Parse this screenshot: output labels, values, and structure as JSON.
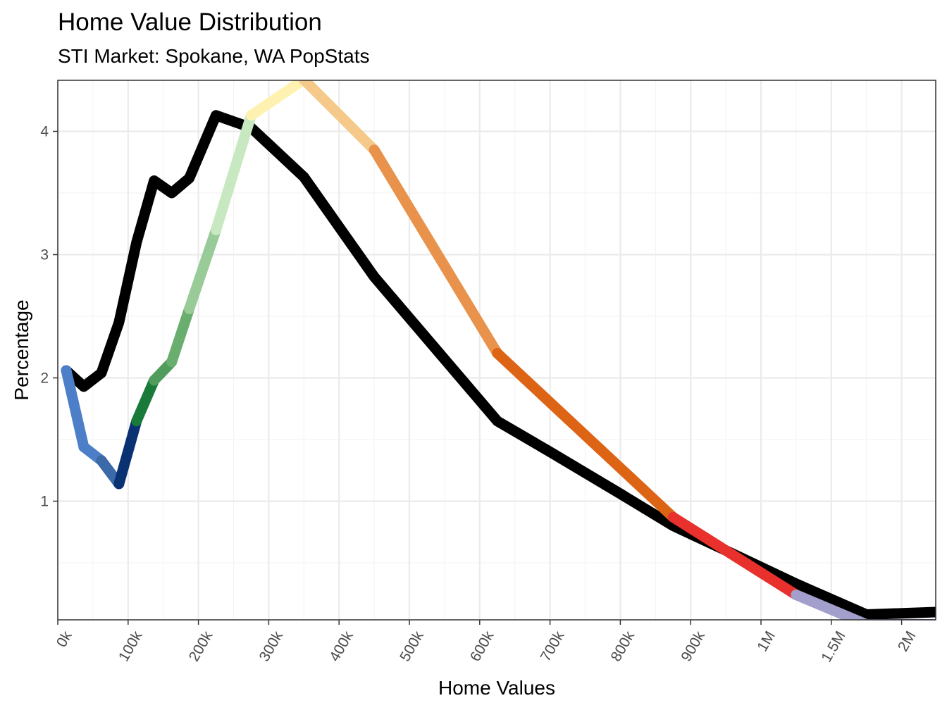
{
  "chart_data": {
    "type": "line",
    "title": "Home Value Distribution",
    "subtitle": "STI Market: Spokane, WA PopStats",
    "xlabel": "Home Values",
    "ylabel": "Percentage",
    "x_tick_labels": [
      "0k",
      "100k",
      "200k",
      "300k",
      "400k",
      "500k",
      "600k",
      "700k",
      "800k",
      "900k",
      "1M",
      "1.5M",
      "2M"
    ],
    "y_tick_values": [
      1,
      2,
      3,
      4
    ],
    "ylim": [
      0.05,
      4.42
    ],
    "grid": true,
    "series": [
      {
        "color": "#000000",
        "points": [
          [
            0.12,
            2.06
          ],
          [
            0.37,
            1.93
          ],
          [
            0.62,
            2.04
          ],
          [
            0.87,
            2.45
          ],
          [
            1.12,
            3.1
          ],
          [
            1.37,
            3.6
          ],
          [
            1.62,
            3.5
          ],
          [
            1.87,
            3.62
          ],
          [
            2.25,
            4.13
          ],
          [
            2.75,
            4.03
          ],
          [
            3.5,
            3.63
          ],
          [
            4.5,
            2.82
          ],
          [
            6.25,
            1.65
          ],
          [
            7,
            1.4
          ],
          [
            8,
            1.06
          ],
          [
            8.75,
            0.8
          ],
          [
            9.5,
            0.6
          ],
          [
            10.5,
            0.33
          ],
          [
            11.5,
            0.08
          ],
          [
            12.5,
            0.1
          ]
        ]
      },
      {
        "colored": true,
        "points": [
          [
            0.12,
            2.06
          ],
          [
            0.37,
            1.44
          ],
          [
            0.62,
            1.33
          ],
          [
            0.87,
            1.14
          ],
          [
            1.12,
            1.65
          ],
          [
            1.37,
            1.98
          ],
          [
            1.62,
            2.13
          ],
          [
            1.87,
            2.56
          ],
          [
            2.25,
            3.2
          ],
          [
            2.75,
            4.13
          ],
          [
            3.5,
            4.42
          ],
          [
            4.5,
            3.85
          ],
          [
            6.25,
            2.2
          ],
          [
            8.75,
            0.87
          ],
          [
            10.5,
            0.24
          ],
          [
            11.5,
            0.0
          ],
          [
            12.5,
            0.0
          ]
        ],
        "segment_colors": [
          "#4d7fc9",
          "#4d7fc9",
          "#3c6aa8",
          "#0a3272",
          "#1a7a3a",
          "#4f9c5c",
          "#6aae6f",
          "#98cb98",
          "#c7e8c0",
          "#fff2b0",
          "#f5c98a",
          "#e8924b",
          "#dd6415",
          "#e8302d",
          "#a39fcc",
          "#6d55a6"
        ]
      }
    ]
  }
}
